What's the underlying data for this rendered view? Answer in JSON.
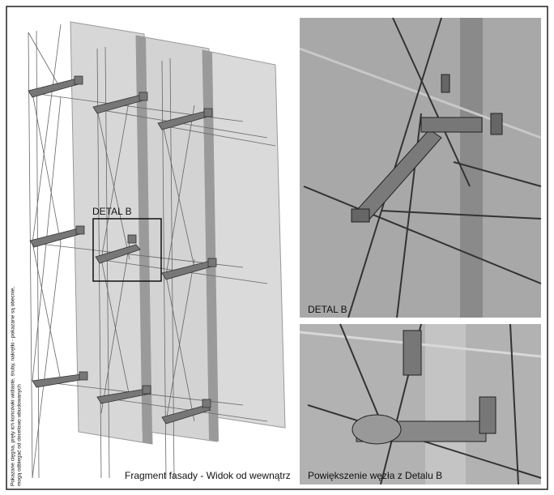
{
  "left": {
    "detail_label": "DETAL B",
    "caption": "Fragment fasady - Widok od wewnątrz",
    "note": [
      "Pokazane cięgna, pręty ich końcówki widlaste, śruby, nakrętki - pokazane są obecnie,",
      "mogą odbiegać od docelowo wbudowanych"
    ]
  },
  "detail_top": {
    "label": "DETAL B"
  },
  "detail_bottom": {
    "label": "Powiększenie węzła z Detalu B"
  }
}
